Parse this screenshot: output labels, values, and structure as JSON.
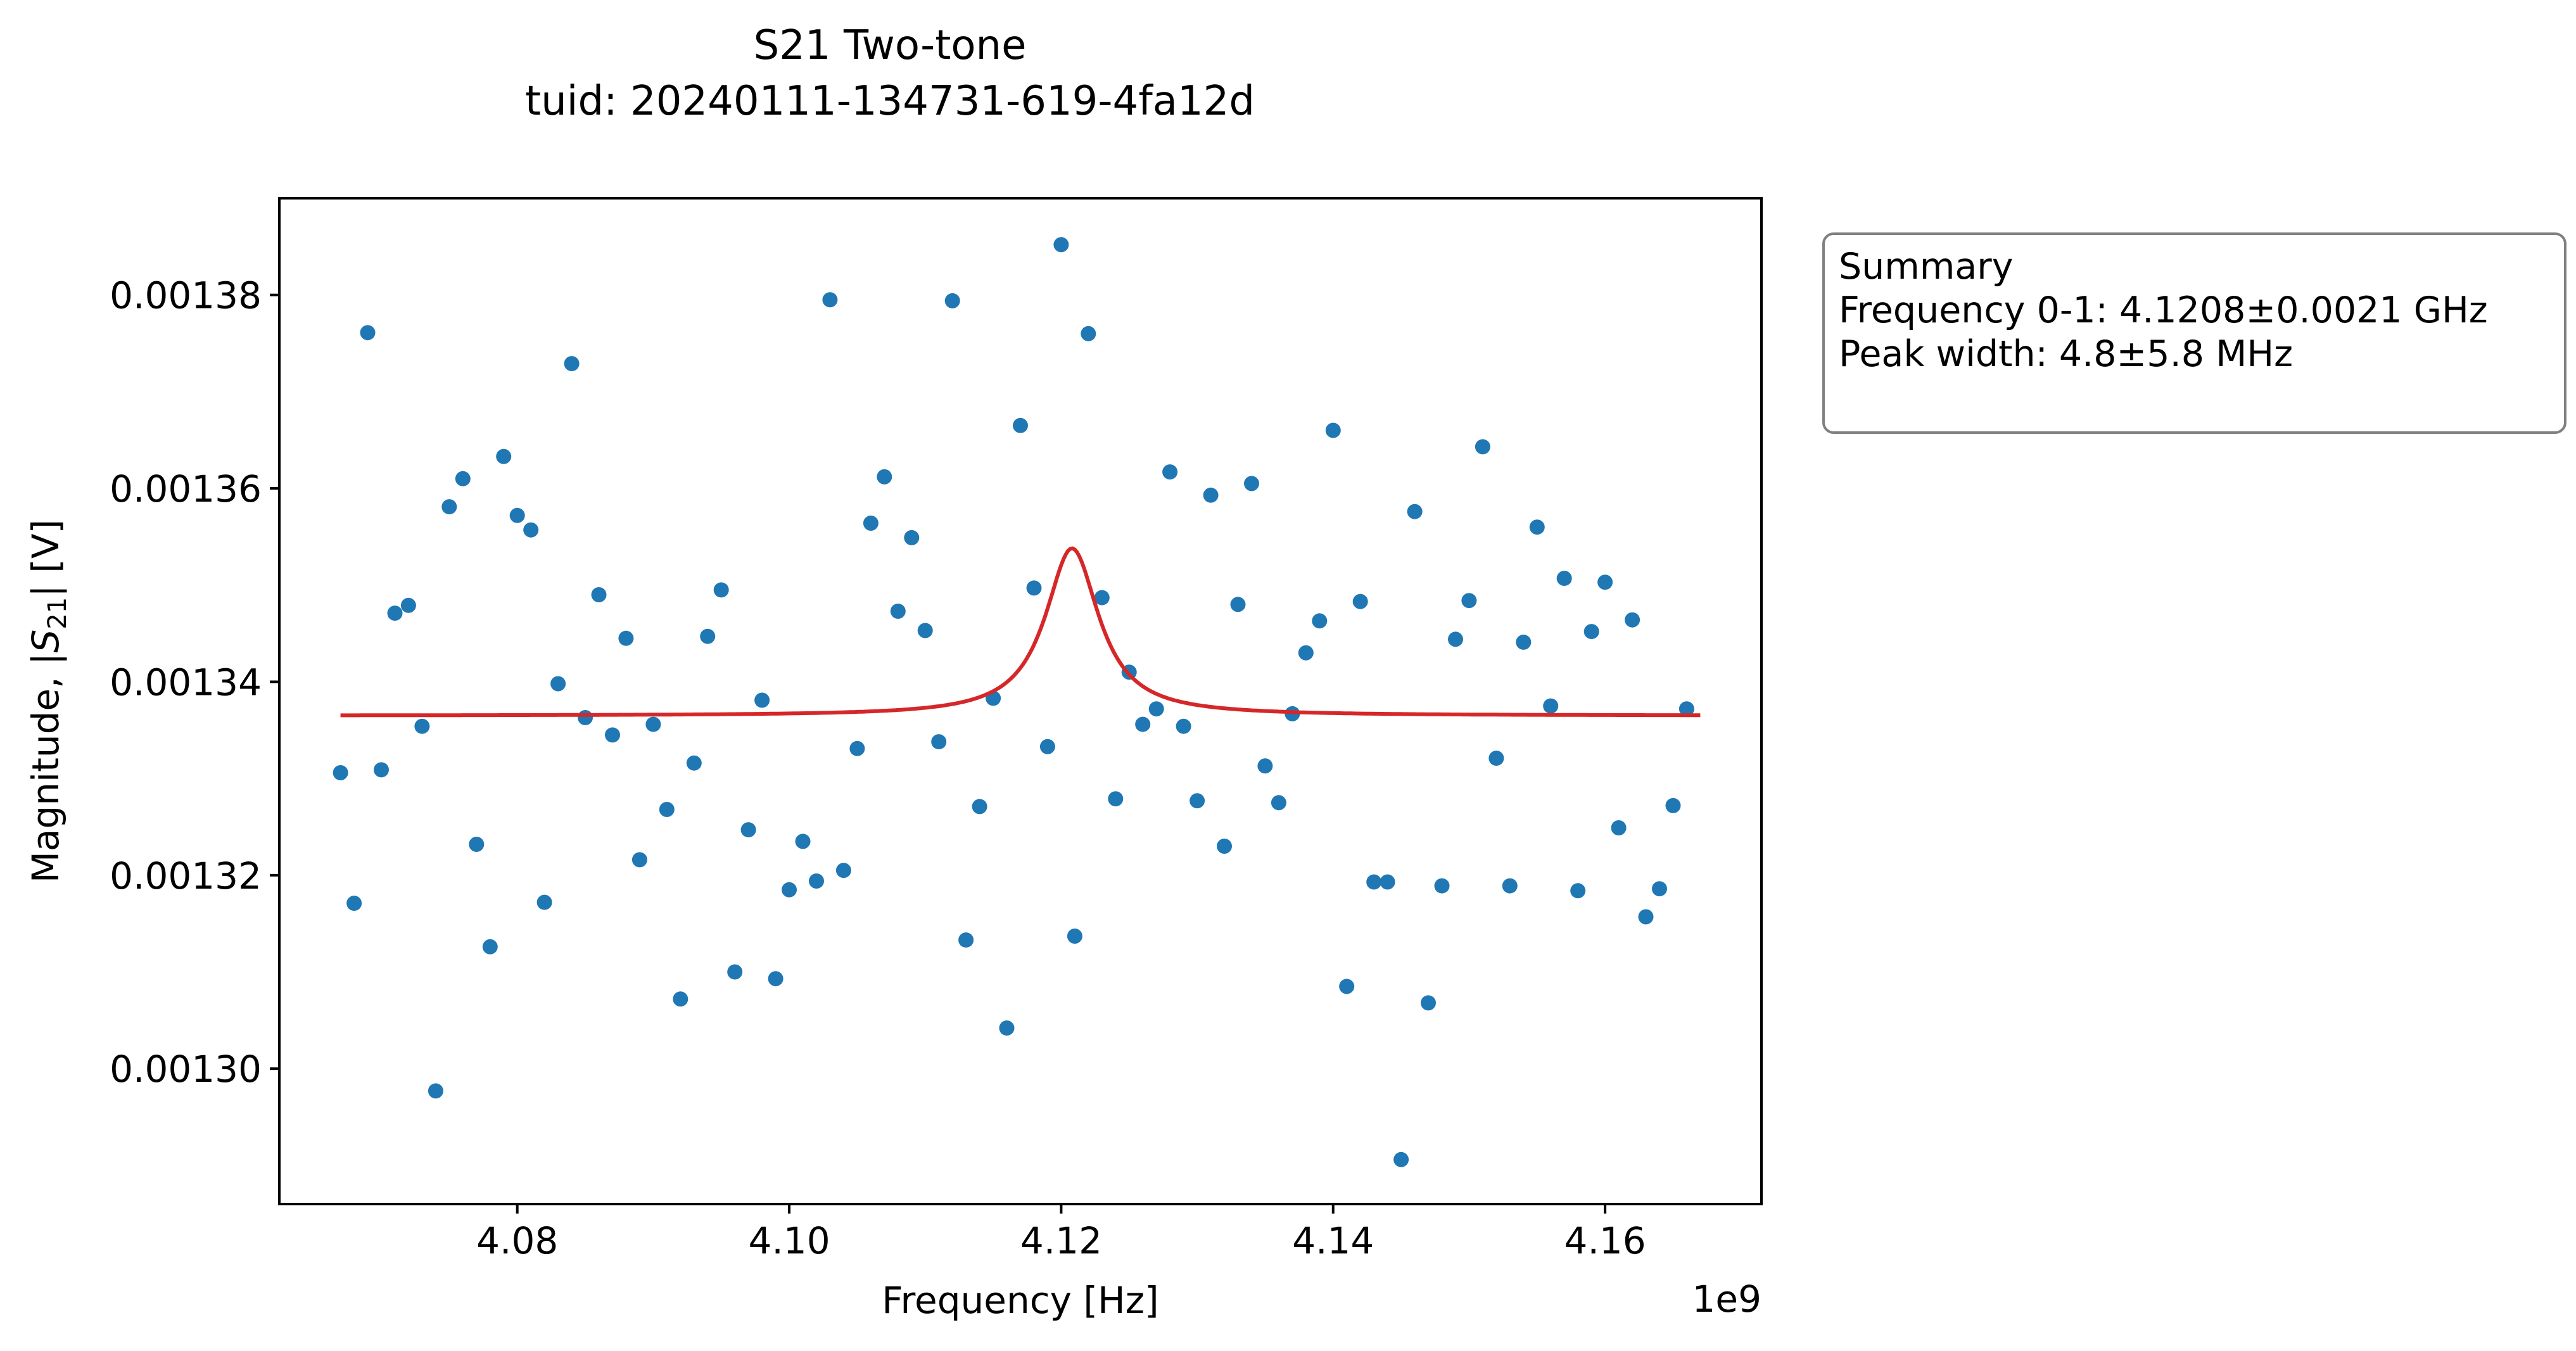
{
  "title_line1": "S21 Two-tone",
  "title_line2": "tuid: 20240111-134731-619-4fa12d",
  "summary": {
    "heading": "Summary",
    "frequency": "Frequency 0-1: 4.1208±0.0021 GHz",
    "peak_width": "Peak width: 4.8±5.8 MHz"
  },
  "chart_data": {
    "type": "scatter",
    "title": "S21 Two-tone\ntuid: 20240111-134731-619-4fa12d",
    "xlabel": "Frequency [Hz]",
    "ylabel": "Magnitude, |S21| [V]",
    "x_offset_label": "1e9",
    "xlim": [
      4.0625,
      4.1715
    ],
    "ylim": [
      0.001286,
      0.00139
    ],
    "xticks": [
      4.08,
      4.1,
      4.12,
      4.14,
      4.16
    ],
    "xtick_labels": [
      "4.08",
      "4.10",
      "4.12",
      "4.14",
      "4.16"
    ],
    "yticks": [
      0.0013,
      0.00132,
      0.00134,
      0.00136,
      0.00138
    ],
    "ytick_labels": [
      "0.00130",
      "0.00132",
      "0.00134",
      "0.00136",
      "0.00138"
    ],
    "grid": false,
    "colors": {
      "data": "#1f77b4",
      "fit": "#d62728"
    },
    "series": [
      {
        "kind": "points",
        "points": [
          [
            4.067,
            0.0013306
          ],
          [
            4.068,
            0.0013171
          ],
          [
            4.069,
            0.0013761
          ],
          [
            4.07,
            0.0013309
          ],
          [
            4.071,
            0.0013471
          ],
          [
            4.072,
            0.0013479
          ],
          [
            4.073,
            0.0013354
          ],
          [
            4.074,
            0.0012977
          ],
          [
            4.075,
            0.0013581
          ],
          [
            4.076,
            0.001361
          ],
          [
            4.077,
            0.0013232
          ],
          [
            4.078,
            0.0013126
          ],
          [
            4.079,
            0.0013633
          ],
          [
            4.08,
            0.0013572
          ],
          [
            4.081,
            0.0013557
          ],
          [
            4.082,
            0.0013172
          ],
          [
            4.083,
            0.0013398
          ],
          [
            4.084,
            0.0013729
          ],
          [
            4.085,
            0.0013363
          ],
          [
            4.086,
            0.001349
          ],
          [
            4.087,
            0.0013345
          ],
          [
            4.088,
            0.0013445
          ],
          [
            4.089,
            0.0013216
          ],
          [
            4.09,
            0.0013356
          ],
          [
            4.091,
            0.0013268
          ],
          [
            4.092,
            0.0013072
          ],
          [
            4.093,
            0.0013316
          ],
          [
            4.094,
            0.0013447
          ],
          [
            4.095,
            0.0013495
          ],
          [
            4.096,
            0.00131
          ],
          [
            4.097,
            0.0013247
          ],
          [
            4.098,
            0.0013381
          ],
          [
            4.099,
            0.0013093
          ],
          [
            4.1,
            0.0013185
          ],
          [
            4.101,
            0.0013235
          ],
          [
            4.102,
            0.0013194
          ],
          [
            4.103,
            0.0013795
          ],
          [
            4.104,
            0.0013205
          ],
          [
            4.105,
            0.0013331
          ],
          [
            4.106,
            0.0013564
          ],
          [
            4.107,
            0.0013612
          ],
          [
            4.108,
            0.0013473
          ],
          [
            4.109,
            0.0013549
          ],
          [
            4.11,
            0.0013453
          ],
          [
            4.111,
            0.0013338
          ],
          [
            4.112,
            0.0013794
          ],
          [
            4.113,
            0.0013133
          ],
          [
            4.114,
            0.0013271
          ],
          [
            4.115,
            0.0013383
          ],
          [
            4.116,
            0.0013042
          ],
          [
            4.117,
            0.0013665
          ],
          [
            4.118,
            0.0013497
          ],
          [
            4.119,
            0.0013333
          ],
          [
            4.12,
            0.0013852
          ],
          [
            4.121,
            0.0013137
          ],
          [
            4.122,
            0.001376
          ],
          [
            4.123,
            0.0013487
          ],
          [
            4.124,
            0.0013279
          ],
          [
            4.125,
            0.001341
          ],
          [
            4.126,
            0.0013356
          ],
          [
            4.127,
            0.0013372
          ],
          [
            4.128,
            0.0013617
          ],
          [
            4.129,
            0.0013354
          ],
          [
            4.13,
            0.0013277
          ],
          [
            4.131,
            0.0013593
          ],
          [
            4.132,
            0.001323
          ],
          [
            4.133,
            0.001348
          ],
          [
            4.134,
            0.0013605
          ],
          [
            4.135,
            0.0013313
          ],
          [
            4.136,
            0.0013275
          ],
          [
            4.137,
            0.0013367
          ],
          [
            4.138,
            0.001343
          ],
          [
            4.139,
            0.0013463
          ],
          [
            4.14,
            0.001366
          ],
          [
            4.141,
            0.0013085
          ],
          [
            4.142,
            0.0013483
          ],
          [
            4.143,
            0.0013193
          ],
          [
            4.144,
            0.0013193
          ],
          [
            4.145,
            0.0012906
          ],
          [
            4.146,
            0.0013576
          ],
          [
            4.147,
            0.0013068
          ],
          [
            4.148,
            0.0013189
          ],
          [
            4.149,
            0.0013444
          ],
          [
            4.15,
            0.0013484
          ],
          [
            4.151,
            0.0013643
          ],
          [
            4.152,
            0.0013321
          ],
          [
            4.153,
            0.0013189
          ],
          [
            4.154,
            0.0013441
          ],
          [
            4.155,
            0.001356
          ],
          [
            4.156,
            0.0013375
          ],
          [
            4.157,
            0.0013507
          ],
          [
            4.158,
            0.0013184
          ],
          [
            4.159,
            0.0013452
          ],
          [
            4.16,
            0.0013503
          ],
          [
            4.161,
            0.0013249
          ],
          [
            4.162,
            0.0013464
          ],
          [
            4.163,
            0.0013157
          ],
          [
            4.164,
            0.0013186
          ],
          [
            4.165,
            0.0013272
          ],
          [
            4.166,
            0.0013372
          ]
        ]
      },
      {
        "kind": "line",
        "model": "lorentzian",
        "x_range": [
          4.067,
          4.167
        ],
        "center": 4.1208,
        "fwhm": 0.0048,
        "baseline": 0.0013365,
        "amplitude": 1.73e-05
      }
    ]
  }
}
